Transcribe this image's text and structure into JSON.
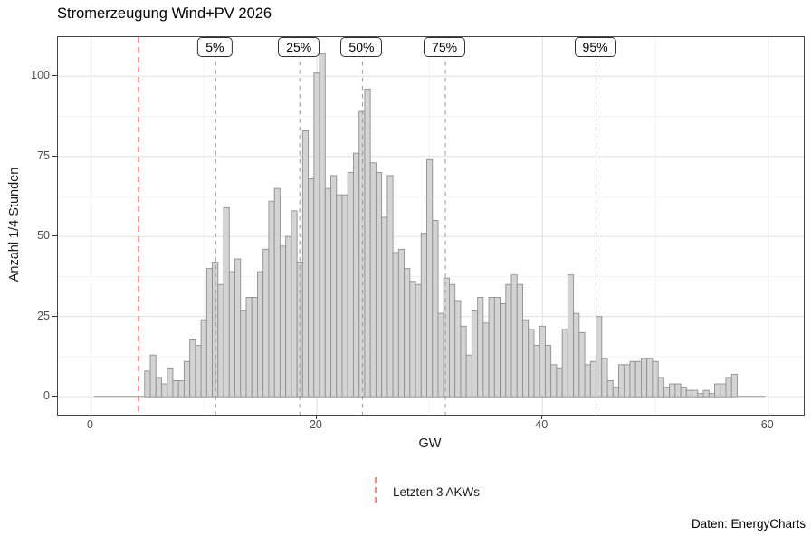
{
  "title": "Stromerzeugung Wind+PV 2026",
  "caption": "Daten: EnergyCharts",
  "x_axis_label": "GW",
  "y_axis_label": "Anzahl 1/4 Stunden",
  "legend": {
    "label": "Letzten 3 AKWs"
  },
  "axes": {
    "x": {
      "major_ticks": [
        0,
        20,
        40,
        60
      ],
      "minor_ticks": [
        10,
        30,
        50
      ],
      "lim": [
        -2.93,
        63.15
      ]
    },
    "y": {
      "major_ticks": [
        0,
        25,
        50,
        75,
        100
      ],
      "minor_ticks": [
        12.5,
        37.5,
        62.5,
        87.5
      ],
      "lim": [
        -5.6,
        112.2
      ]
    }
  },
  "annotations": {
    "red_line_x": 4.2,
    "percentiles": [
      {
        "label": "5%",
        "x": 11.05
      },
      {
        "label": "25%",
        "x": 18.5
      },
      {
        "label": "50%",
        "x": 24.05
      },
      {
        "label": "75%",
        "x": 31.4
      },
      {
        "label": "95%",
        "x": 44.75
      }
    ]
  },
  "colors": {
    "bar_fill": "#d4d4d4",
    "bar_stroke": "#8f8f8f",
    "zero_bin_line": "#a9a9a9",
    "grid_major": "#e4e4e4",
    "grid_minor": "#f0f0f0",
    "panel_border": "#454545",
    "percentile_line": "#9e9e9e",
    "red_line": "#f8695e",
    "tick_text": "#4d4d4d"
  },
  "chart_data": {
    "type": "bar",
    "subtype": "histogram",
    "title": "Stromerzeugung Wind+PV 2026",
    "xlabel": "GW",
    "ylabel": "Anzahl 1/4 Stunden",
    "legend_position": "bottom",
    "grid": true,
    "bin_width": 0.5,
    "x_start": 0.5,
    "xlim": [
      0,
      60
    ],
    "ylim": [
      0,
      107
    ],
    "values": [
      0,
      0,
      0,
      0,
      0,
      0,
      0,
      0,
      0,
      8,
      13,
      6,
      4,
      9,
      5,
      5,
      11,
      18,
      16,
      24,
      40,
      42,
      35,
      59,
      39,
      43,
      27,
      31,
      31,
      39,
      46,
      61,
      65,
      47,
      50,
      58,
      42,
      83,
      68,
      101,
      107,
      65,
      69,
      63,
      63,
      70,
      76,
      89,
      96,
      73,
      70,
      56,
      69,
      45,
      46,
      40,
      36,
      35,
      51,
      74,
      55,
      26,
      37,
      35,
      30,
      22,
      13,
      27,
      31,
      23,
      31,
      31,
      29,
      35,
      38,
      35,
      24,
      21,
      16,
      22,
      16,
      10,
      9,
      21,
      38,
      26,
      20,
      10,
      11,
      25,
      12,
      5,
      3,
      10,
      10,
      11,
      11,
      12,
      12,
      11,
      6,
      3,
      4,
      4,
      3,
      2,
      2,
      1,
      2,
      1,
      4,
      4,
      6,
      7,
      0,
      0,
      0,
      0,
      0
    ]
  }
}
